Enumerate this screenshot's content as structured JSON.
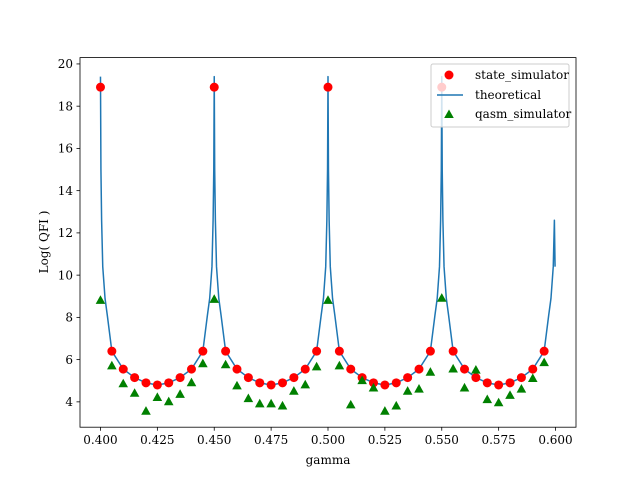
{
  "chart_data": {
    "type": "scatter",
    "title": "",
    "xlabel": "gamma",
    "ylabel": "Log( QFI )",
    "xlim": [
      0.391,
      0.609
    ],
    "ylim": [
      2.8,
      20.3
    ],
    "xticks": [
      0.4,
      0.425,
      0.45,
      0.475,
      0.5,
      0.525,
      0.55,
      0.575,
      0.6
    ],
    "xtick_labels": [
      "0.400",
      "0.425",
      "0.450",
      "0.475",
      "0.500",
      "0.525",
      "0.550",
      "0.575",
      "0.600"
    ],
    "yticks": [
      4,
      6,
      8,
      10,
      12,
      14,
      16,
      18,
      20
    ],
    "ytick_labels": [
      "4",
      "6",
      "8",
      "10",
      "12",
      "14",
      "16",
      "18",
      "20"
    ],
    "grid": false,
    "legend_position": "top-right",
    "series": [
      {
        "name": "state_simulator",
        "marker": "circle",
        "color": "#ff0000",
        "x": [
          0.4,
          0.405,
          0.41,
          0.415,
          0.42,
          0.425,
          0.43,
          0.435,
          0.44,
          0.445,
          0.45,
          0.455,
          0.46,
          0.465,
          0.47,
          0.475,
          0.48,
          0.485,
          0.49,
          0.495,
          0.5,
          0.505,
          0.51,
          0.515,
          0.52,
          0.525,
          0.53,
          0.535,
          0.54,
          0.545,
          0.55,
          0.555,
          0.56,
          0.565,
          0.57,
          0.575,
          0.58,
          0.585,
          0.59,
          0.595
        ],
        "y": [
          18.9,
          6.4,
          5.55,
          5.15,
          4.9,
          4.8,
          4.9,
          5.15,
          5.55,
          6.4,
          18.9,
          6.4,
          5.55,
          5.15,
          4.9,
          4.8,
          4.9,
          5.15,
          5.55,
          6.4,
          18.9,
          6.4,
          5.55,
          5.15,
          4.9,
          4.8,
          4.9,
          5.15,
          5.55,
          6.4,
          18.9,
          6.4,
          5.55,
          5.15,
          4.9,
          4.8,
          4.9,
          5.15,
          5.55,
          6.4
        ]
      },
      {
        "name": "theoretical",
        "marker": "line",
        "color": "#1f77b4",
        "x": [
          0.4,
          0.4002,
          0.4005,
          0.401,
          0.402,
          0.403,
          0.405,
          0.41,
          0.415,
          0.42,
          0.425,
          0.43,
          0.435,
          0.44,
          0.445,
          0.447,
          0.448,
          0.449,
          0.4495,
          0.4498,
          0.45,
          0.4502,
          0.4505,
          0.451,
          0.452,
          0.453,
          0.455,
          0.46,
          0.465,
          0.47,
          0.475,
          0.48,
          0.485,
          0.49,
          0.495,
          0.497,
          0.498,
          0.499,
          0.4995,
          0.4998,
          0.5,
          0.5002,
          0.5005,
          0.501,
          0.502,
          0.503,
          0.505,
          0.51,
          0.515,
          0.52,
          0.525,
          0.53,
          0.535,
          0.54,
          0.545,
          0.547,
          0.548,
          0.549,
          0.5495,
          0.5498,
          0.55,
          0.5502,
          0.5505,
          0.551,
          0.552,
          0.553,
          0.555,
          0.56,
          0.565,
          0.57,
          0.575,
          0.58,
          0.585,
          0.59,
          0.595,
          0.597,
          0.598,
          0.599,
          0.5995,
          0.5998
        ],
        "y": [
          19.4,
          15.0,
          12.6,
          10.4,
          8.9,
          8.1,
          6.4,
          5.55,
          5.15,
          4.9,
          4.8,
          4.9,
          5.15,
          5.55,
          6.4,
          8.1,
          8.9,
          10.4,
          12.6,
          15.0,
          19.4,
          15.0,
          12.6,
          10.4,
          8.9,
          8.1,
          6.4,
          5.55,
          5.15,
          4.9,
          4.8,
          4.9,
          5.15,
          5.55,
          6.4,
          8.1,
          8.9,
          10.4,
          12.6,
          15.0,
          19.4,
          15.0,
          12.6,
          10.4,
          8.9,
          8.1,
          6.4,
          5.55,
          5.15,
          4.9,
          4.8,
          4.9,
          5.15,
          5.55,
          6.4,
          8.1,
          8.9,
          10.4,
          12.6,
          15.0,
          19.4,
          15.0,
          12.6,
          10.4,
          8.9,
          8.1,
          6.4,
          5.55,
          5.15,
          4.9,
          4.8,
          4.9,
          5.15,
          5.55,
          6.4,
          8.1,
          8.9,
          10.4,
          12.6,
          10.4
        ]
      },
      {
        "name": "qasm_simulator",
        "marker": "triangle",
        "color": "#008000",
        "x": [
          0.4,
          0.405,
          0.41,
          0.415,
          0.42,
          0.425,
          0.43,
          0.435,
          0.44,
          0.445,
          0.45,
          0.455,
          0.46,
          0.465,
          0.47,
          0.475,
          0.48,
          0.485,
          0.49,
          0.495,
          0.5,
          0.505,
          0.51,
          0.515,
          0.52,
          0.525,
          0.53,
          0.535,
          0.54,
          0.545,
          0.55,
          0.555,
          0.56,
          0.565,
          0.57,
          0.575,
          0.58,
          0.585,
          0.59,
          0.595
        ],
        "y": [
          8.8,
          5.7,
          4.85,
          4.4,
          3.55,
          4.2,
          4.0,
          4.35,
          4.9,
          5.8,
          8.85,
          5.75,
          4.75,
          4.15,
          3.9,
          3.9,
          3.8,
          4.5,
          4.8,
          5.65,
          8.8,
          5.7,
          3.85,
          5.0,
          4.65,
          3.55,
          3.8,
          4.5,
          4.6,
          5.4,
          8.9,
          5.55,
          4.65,
          5.5,
          4.1,
          3.95,
          4.3,
          4.6,
          5.1,
          5.85
        ]
      }
    ]
  }
}
